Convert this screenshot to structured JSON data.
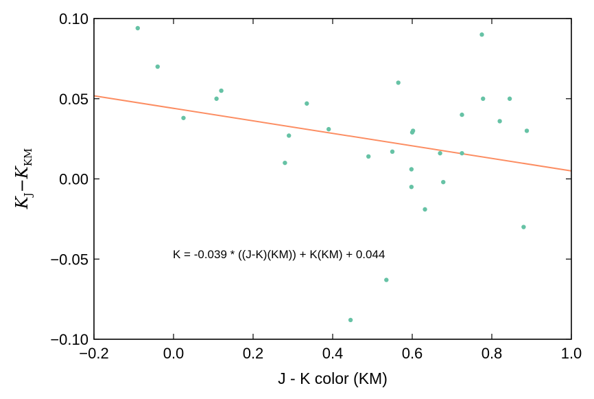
{
  "chart_data": {
    "type": "scatter",
    "xlabel": "J - K color (KM)",
    "ylabel_main": "K",
    "ylabel_sub1": "J",
    "ylabel_minus": "−",
    "ylabel_sub2": "KM",
    "xlim": [
      -0.2,
      1.0
    ],
    "ylim": [
      -0.1,
      0.1
    ],
    "xticks": [
      -0.2,
      0.0,
      0.2,
      0.4,
      0.6,
      0.8,
      1.0
    ],
    "xtick_labels": [
      "−0.2",
      "0.0",
      "0.2",
      "0.4",
      "0.6",
      "0.8",
      "1.0"
    ],
    "yticks": [
      -0.1,
      -0.05,
      0.0,
      0.05,
      0.1
    ],
    "ytick_labels": [
      "−0.10",
      "−0.05",
      "0.00",
      "0.05",
      "0.10"
    ],
    "grid": false,
    "point_color": "#66c2a5",
    "line_color": "#fc8d62",
    "points": [
      {
        "x": -0.09,
        "y": 0.094
      },
      {
        "x": -0.04,
        "y": 0.07
      },
      {
        "x": 0.025,
        "y": 0.038
      },
      {
        "x": 0.108,
        "y": 0.05
      },
      {
        "x": 0.12,
        "y": 0.055
      },
      {
        "x": 0.28,
        "y": 0.01
      },
      {
        "x": 0.29,
        "y": 0.027
      },
      {
        "x": 0.335,
        "y": 0.047
      },
      {
        "x": 0.39,
        "y": 0.031
      },
      {
        "x": 0.445,
        "y": -0.088
      },
      {
        "x": 0.49,
        "y": 0.014
      },
      {
        "x": 0.535,
        "y": -0.063
      },
      {
        "x": 0.55,
        "y": 0.017
      },
      {
        "x": 0.565,
        "y": 0.06
      },
      {
        "x": 0.598,
        "y": 0.006
      },
      {
        "x": 0.598,
        "y": -0.005
      },
      {
        "x": 0.6,
        "y": 0.029
      },
      {
        "x": 0.602,
        "y": 0.03
      },
      {
        "x": 0.632,
        "y": -0.019
      },
      {
        "x": 0.67,
        "y": 0.016
      },
      {
        "x": 0.678,
        "y": -0.002
      },
      {
        "x": 0.725,
        "y": 0.04
      },
      {
        "x": 0.725,
        "y": 0.016
      },
      {
        "x": 0.775,
        "y": 0.09
      },
      {
        "x": 0.778,
        "y": 0.05
      },
      {
        "x": 0.82,
        "y": 0.036
      },
      {
        "x": 0.845,
        "y": 0.05
      },
      {
        "x": 0.88,
        "y": -0.03
      },
      {
        "x": 0.888,
        "y": 0.03
      }
    ],
    "fit": {
      "slope": -0.039,
      "intercept": 0.044
    },
    "annotation": "K = -0.039 * ((J-K)(KM)) + K(KM) + 0.044"
  }
}
